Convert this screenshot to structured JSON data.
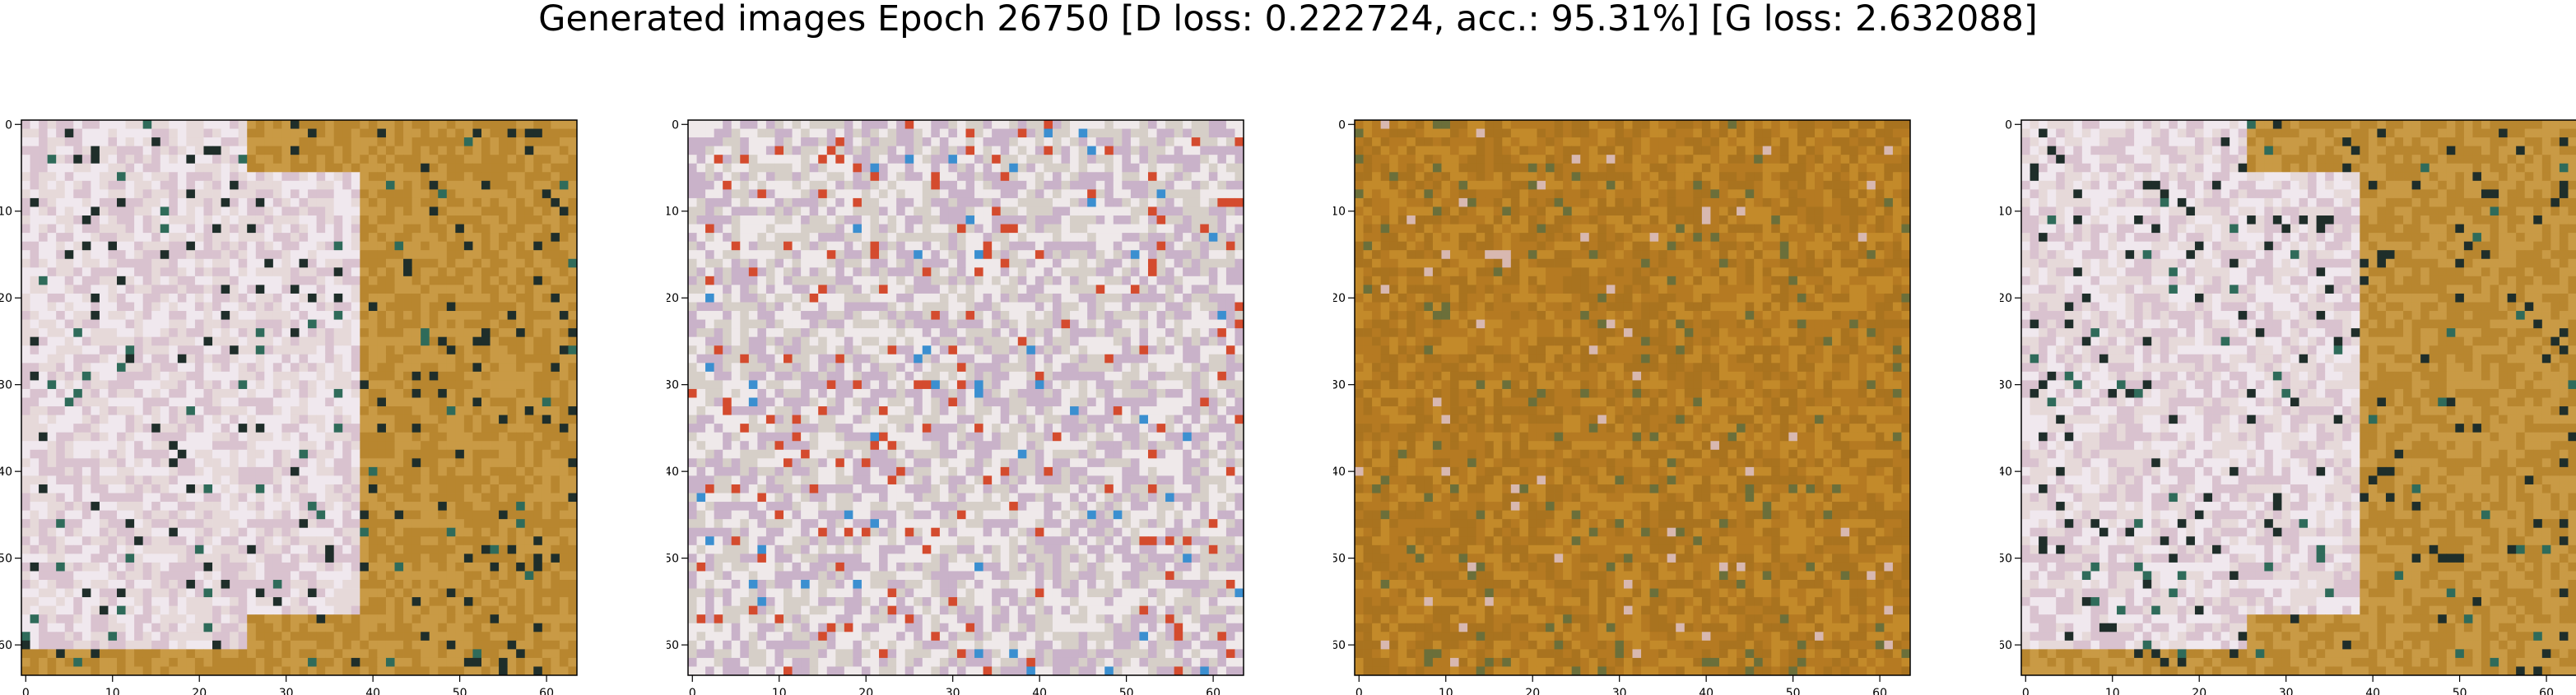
{
  "figure": {
    "title": "Generated images Epoch 26750 [D loss: 0.222724, acc.: 95.31%] [G loss: 2.632088]"
  },
  "axes": {
    "x_ticks": [
      "0",
      "10",
      "20",
      "30",
      "40",
      "50",
      "60"
    ],
    "y_ticks": [
      "0",
      "10",
      "20",
      "30",
      "40",
      "50",
      "60"
    ],
    "image_size": 64
  },
  "images": [
    {
      "name": "generated-image-1",
      "palette": [
        "#b8862f",
        "#c99a45",
        "#e6d9d9",
        "#d9c2cf",
        "#f0e8ee",
        "#1f2e2a",
        "#2f6b5a"
      ]
    },
    {
      "name": "generated-image-2",
      "palette": [
        "#d6cfc8",
        "#efe9ea",
        "#c9b2c9",
        "#2a2a2a",
        "#4fa39a",
        "#d44b2e",
        "#3b8fd0"
      ]
    },
    {
      "name": "generated-image-3",
      "palette": [
        "#a9731f",
        "#c38a2a",
        "#b57a22",
        "#e2c05a",
        "#1a1a10",
        "#6b6f3a",
        "#d8b8b0"
      ]
    },
    {
      "name": "generated-image-4",
      "palette": [
        "#b8862f",
        "#c99a45",
        "#e6d9d9",
        "#d9c2cf",
        "#f0e8ee",
        "#1f2e2a",
        "#2f6b5a"
      ]
    }
  ]
}
